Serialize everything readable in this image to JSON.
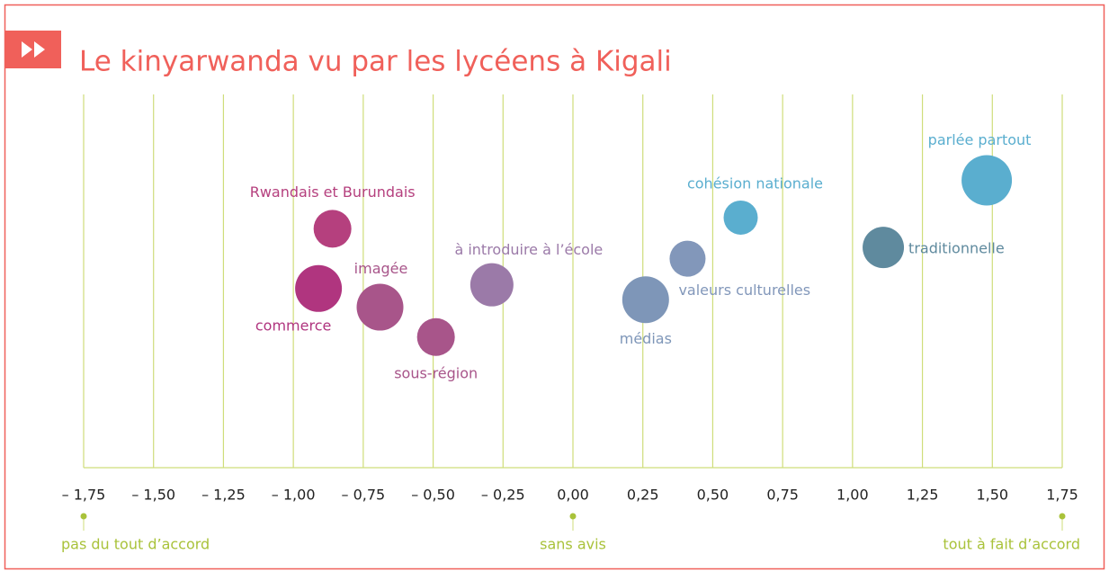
{
  "chart_data": {
    "type": "bubble",
    "title": "Le kinyarwanda vu par les lycéens à Kigali",
    "xlim": [
      -1.75,
      1.75
    ],
    "ylim": [
      0,
      100
    ],
    "xticks": [
      {
        "value": -1.75,
        "label": "– 1,75"
      },
      {
        "value": -1.5,
        "label": "– 1,50"
      },
      {
        "value": -1.25,
        "label": "– 1,25"
      },
      {
        "value": -1,
        "label": "– 1,00"
      },
      {
        "value": -0.75,
        "label": "– 0,75"
      },
      {
        "value": -0.5,
        "label": "– 0,50"
      },
      {
        "value": -0.25,
        "label": "– 0,25"
      },
      {
        "value": 0,
        "label": "0,00"
      },
      {
        "value": 0.25,
        "label": "0,25"
      },
      {
        "value": 0.5,
        "label": "0,50"
      },
      {
        "value": 0.75,
        "label": "0,75"
      },
      {
        "value": 1,
        "label": "1,00"
      },
      {
        "value": 1.25,
        "label": "1,25"
      },
      {
        "value": 1.5,
        "label": "1,50"
      },
      {
        "value": 1.75,
        "label": "1,75"
      }
    ],
    "grid": true,
    "grid_color": "#cfdd7a",
    "annotations": [
      {
        "text": "pas du tout d’accord",
        "x": -1.75
      },
      {
        "text": "sans avis",
        "x": 0
      },
      {
        "text": "tout à fait d’accord",
        "x": 1.75
      }
    ],
    "points": [
      {
        "label": "Rwandais et Burundais",
        "x": -0.86,
        "y": 64,
        "size": 21,
        "color": "#b5407e"
      },
      {
        "label": "commerce",
        "x": -0.91,
        "y": 48,
        "size": 26,
        "color": "#b0357f"
      },
      {
        "label": "imagée",
        "x": -0.69,
        "y": 43,
        "size": 26,
        "color": "#a8558a"
      },
      {
        "label": "sous-région",
        "x": -0.49,
        "y": 35,
        "size": 21,
        "color": "#a8558a"
      },
      {
        "label": "à introduire à l’école",
        "x": -0.29,
        "y": 49,
        "size": 24,
        "color": "#9b7aa8"
      },
      {
        "label": "médias",
        "x": 0.26,
        "y": 45,
        "size": 26,
        "color": "#7e96b8"
      },
      {
        "label": "valeurs culturelles",
        "x": 0.41,
        "y": 56,
        "size": 20,
        "color": "#8297ba"
      },
      {
        "label": "cohésion nationale",
        "x": 0.6,
        "y": 67,
        "size": 19,
        "color": "#5aaecf"
      },
      {
        "label": "traditionnelle",
        "x": 1.11,
        "y": 59,
        "size": 23,
        "color": "#5f8a9e"
      },
      {
        "label": "parlée partout",
        "x": 1.48,
        "y": 77,
        "size": 28,
        "color": "#5aaecf"
      }
    ]
  }
}
